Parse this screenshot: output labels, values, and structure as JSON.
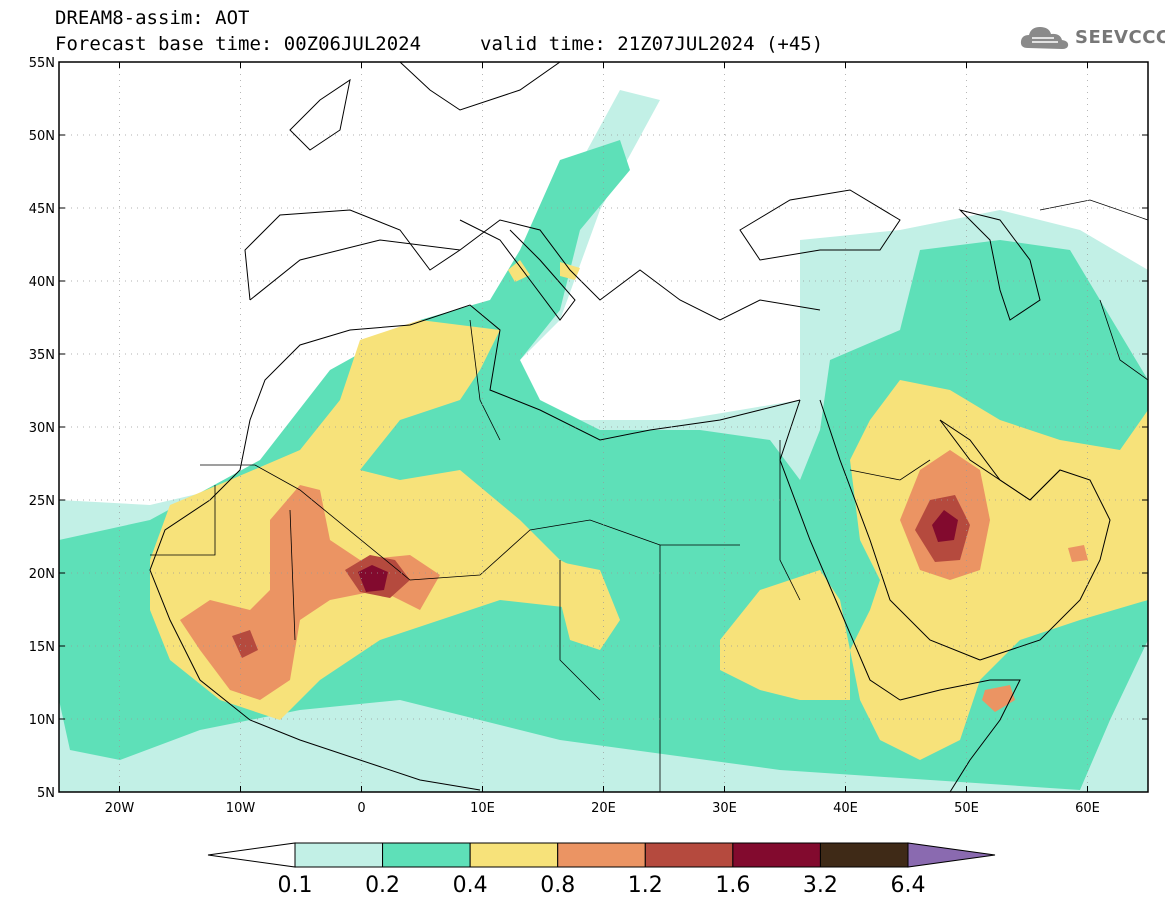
{
  "header": {
    "line1": "DREAM8-assim: AOT",
    "line2": "Forecast base time: 00Z06JUL2024",
    "valid": "valid time: 21Z07JUL2024 (+45)"
  },
  "logo": {
    "text": "SEEVCCC",
    "icon": "cloud-icon"
  },
  "axes": {
    "lat_labels": [
      "55N",
      "50N",
      "45N",
      "40N",
      "35N",
      "30N",
      "25N",
      "20N",
      "15N",
      "10N",
      "5N"
    ],
    "lon_labels": [
      "20W",
      "10W",
      "0",
      "10E",
      "20E",
      "30E",
      "40E",
      "50E",
      "60E"
    ],
    "lat_range": [
      5,
      55
    ],
    "lon_range": [
      -25,
      65
    ],
    "grid": "dotted"
  },
  "colorbar": {
    "labels": [
      "0.1",
      "0.2",
      "0.4",
      "0.8",
      "1.2",
      "1.6",
      "3.2",
      "6.4"
    ],
    "colors": [
      "#ffffff",
      "#c2f0e6",
      "#5ee0b8",
      "#f7e27a",
      "#eb9463",
      "#b54a3e",
      "#820a2e",
      "#3f2a17",
      "#8a6ab0"
    ]
  },
  "colors": {
    "c01": "#c2f0e6",
    "c02": "#5ee0b8",
    "c04": "#f7e27a",
    "c08": "#eb9463",
    "c12": "#b54a3e",
    "c16": "#820a2e"
  }
}
